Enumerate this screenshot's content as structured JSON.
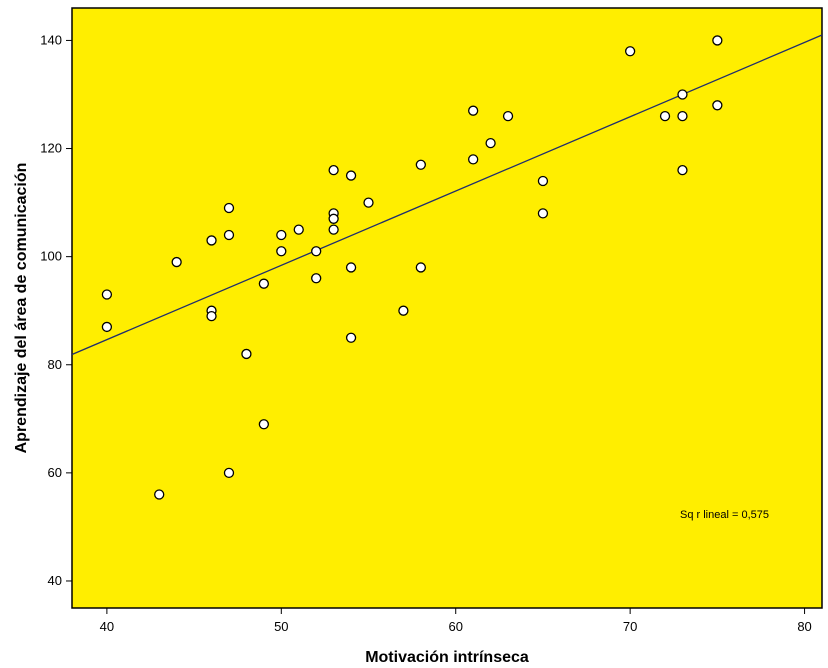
{
  "chart_data": {
    "type": "scatter",
    "xlabel": "Motivación intrínseca",
    "ylabel": "Aprendizaje del área de comunicación",
    "xlim": [
      38,
      81
    ],
    "ylim": [
      35,
      146
    ],
    "xticks": [
      40,
      50,
      60,
      70,
      80
    ],
    "yticks": [
      40,
      60,
      80,
      100,
      120,
      140
    ],
    "grid": false,
    "colors": {
      "plot_background": "#ffee00",
      "marker_fill": "#ffffff",
      "marker_edge": "#000000",
      "fit_line": "#1f2d6e"
    },
    "points": [
      {
        "x": 40,
        "y": 93
      },
      {
        "x": 40,
        "y": 87
      },
      {
        "x": 43,
        "y": 56
      },
      {
        "x": 44,
        "y": 99
      },
      {
        "x": 46,
        "y": 103
      },
      {
        "x": 46,
        "y": 90
      },
      {
        "x": 46,
        "y": 89
      },
      {
        "x": 47,
        "y": 109
      },
      {
        "x": 47,
        "y": 104
      },
      {
        "x": 47,
        "y": 60
      },
      {
        "x": 48,
        "y": 82
      },
      {
        "x": 49,
        "y": 95
      },
      {
        "x": 49,
        "y": 69
      },
      {
        "x": 50,
        "y": 104
      },
      {
        "x": 50,
        "y": 101
      },
      {
        "x": 51,
        "y": 105
      },
      {
        "x": 52,
        "y": 101
      },
      {
        "x": 52,
        "y": 96
      },
      {
        "x": 53,
        "y": 116
      },
      {
        "x": 53,
        "y": 108
      },
      {
        "x": 53,
        "y": 107
      },
      {
        "x": 53,
        "y": 105
      },
      {
        "x": 54,
        "y": 115
      },
      {
        "x": 54,
        "y": 98
      },
      {
        "x": 54,
        "y": 85
      },
      {
        "x": 55,
        "y": 110
      },
      {
        "x": 57,
        "y": 90
      },
      {
        "x": 58,
        "y": 117
      },
      {
        "x": 58,
        "y": 98
      },
      {
        "x": 61,
        "y": 127
      },
      {
        "x": 61,
        "y": 118
      },
      {
        "x": 62,
        "y": 121
      },
      {
        "x": 63,
        "y": 126
      },
      {
        "x": 65,
        "y": 114
      },
      {
        "x": 65,
        "y": 108
      },
      {
        "x": 70,
        "y": 138
      },
      {
        "x": 72,
        "y": 126
      },
      {
        "x": 73,
        "y": 130
      },
      {
        "x": 73,
        "y": 126
      },
      {
        "x": 73,
        "y": 116
      },
      {
        "x": 75,
        "y": 140
      },
      {
        "x": 75,
        "y": 128
      }
    ],
    "fit_line": {
      "x": [
        38,
        81
      ],
      "y": [
        81.9,
        141.0
      ]
    },
    "annotation": "Sq r lineal = 0,575"
  }
}
